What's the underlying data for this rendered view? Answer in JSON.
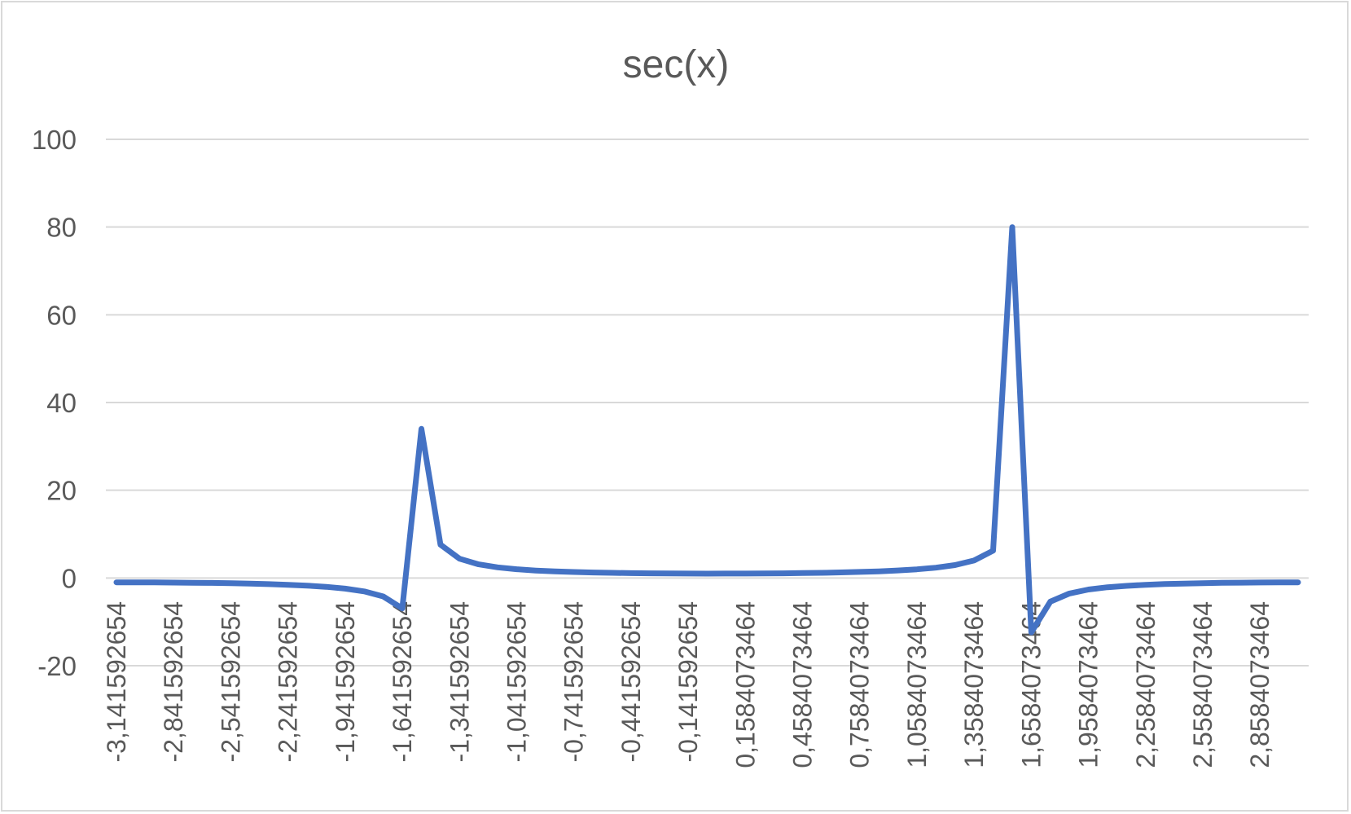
{
  "chart_data": {
    "type": "line",
    "title": "sec(x)",
    "xlabel": "",
    "ylabel": "",
    "ylim": [
      -20,
      100
    ],
    "yticks": [
      -20,
      0,
      20,
      40,
      60,
      80,
      100
    ],
    "grid": true,
    "legend": "none",
    "x_tick_labels": [
      "-3,141592654",
      "-2,841592654",
      "-2,541592654",
      "-2,241592654",
      "-1,941592654",
      "-1,641592654",
      "-1,341592654",
      "-1,041592654",
      "-0,741592654",
      "-0,441592654",
      "-0,141592654",
      "0,1584073464",
      "0,4584073464",
      "0,7584073464",
      "1,0584073464",
      "1,3584073464",
      "1,6584073464",
      "1,9584073464",
      "2,2584073464",
      "2,5584073464",
      "2,8584073464"
    ],
    "x": [
      -3.141592654,
      -3.041592654,
      -2.941592654,
      -2.841592654,
      -2.741592654,
      -2.641592654,
      -2.541592654,
      -2.441592654,
      -2.341592654,
      -2.241592654,
      -2.141592654,
      -2.041592654,
      -1.941592654,
      -1.841592654,
      -1.741592654,
      -1.641592654,
      -1.541592654,
      -1.441592654,
      -1.341592654,
      -1.241592654,
      -1.141592654,
      -1.041592654,
      -0.941592654,
      -0.841592654,
      -0.741592654,
      -0.641592654,
      -0.541592654,
      -0.441592654,
      -0.341592654,
      -0.241592654,
      -0.141592654,
      -0.041592654,
      0.058407346,
      0.158407346,
      0.258407346,
      0.358407346,
      0.458407346,
      0.558407346,
      0.658407346,
      0.758407346,
      0.858407346,
      0.958407346,
      1.058407346,
      1.158407346,
      1.258407346,
      1.358407346,
      1.458407346,
      1.558407346,
      1.658407346,
      1.758407346,
      1.858407346,
      1.958407346,
      2.058407346,
      2.158407346,
      2.258407346,
      2.358407346,
      2.458407346,
      2.558407346,
      2.658407346,
      2.758407346,
      2.858407346,
      2.958407346,
      3.058407346
    ],
    "series": [
      {
        "name": "",
        "color": "#4472c4",
        "values": [
          -1.0,
          -1.005,
          -1.02,
          -1.046,
          -1.083,
          -1.133,
          -1.2,
          -1.286,
          -1.399,
          -1.547,
          -1.746,
          -2.023,
          -2.428,
          -3.066,
          -4.216,
          -6.94,
          34.0,
          7.608,
          4.398,
          3.117,
          2.42,
          1.986,
          1.694,
          1.49,
          1.355,
          1.248,
          1.168,
          1.105,
          1.061,
          1.03,
          1.01,
          1.0,
          1.002,
          1.013,
          1.034,
          1.067,
          1.114,
          1.178,
          1.263,
          1.373,
          1.516,
          1.706,
          1.97,
          2.353,
          2.947,
          3.975,
          6.231,
          80.0,
          -12.404,
          -5.398,
          -3.534,
          -2.626,
          -2.118,
          -1.787,
          -1.556,
          -1.394,
          -1.272,
          -1.184,
          -1.115,
          -1.064,
          -1.028,
          -1.007,
          -1.0
        ]
      }
    ]
  }
}
